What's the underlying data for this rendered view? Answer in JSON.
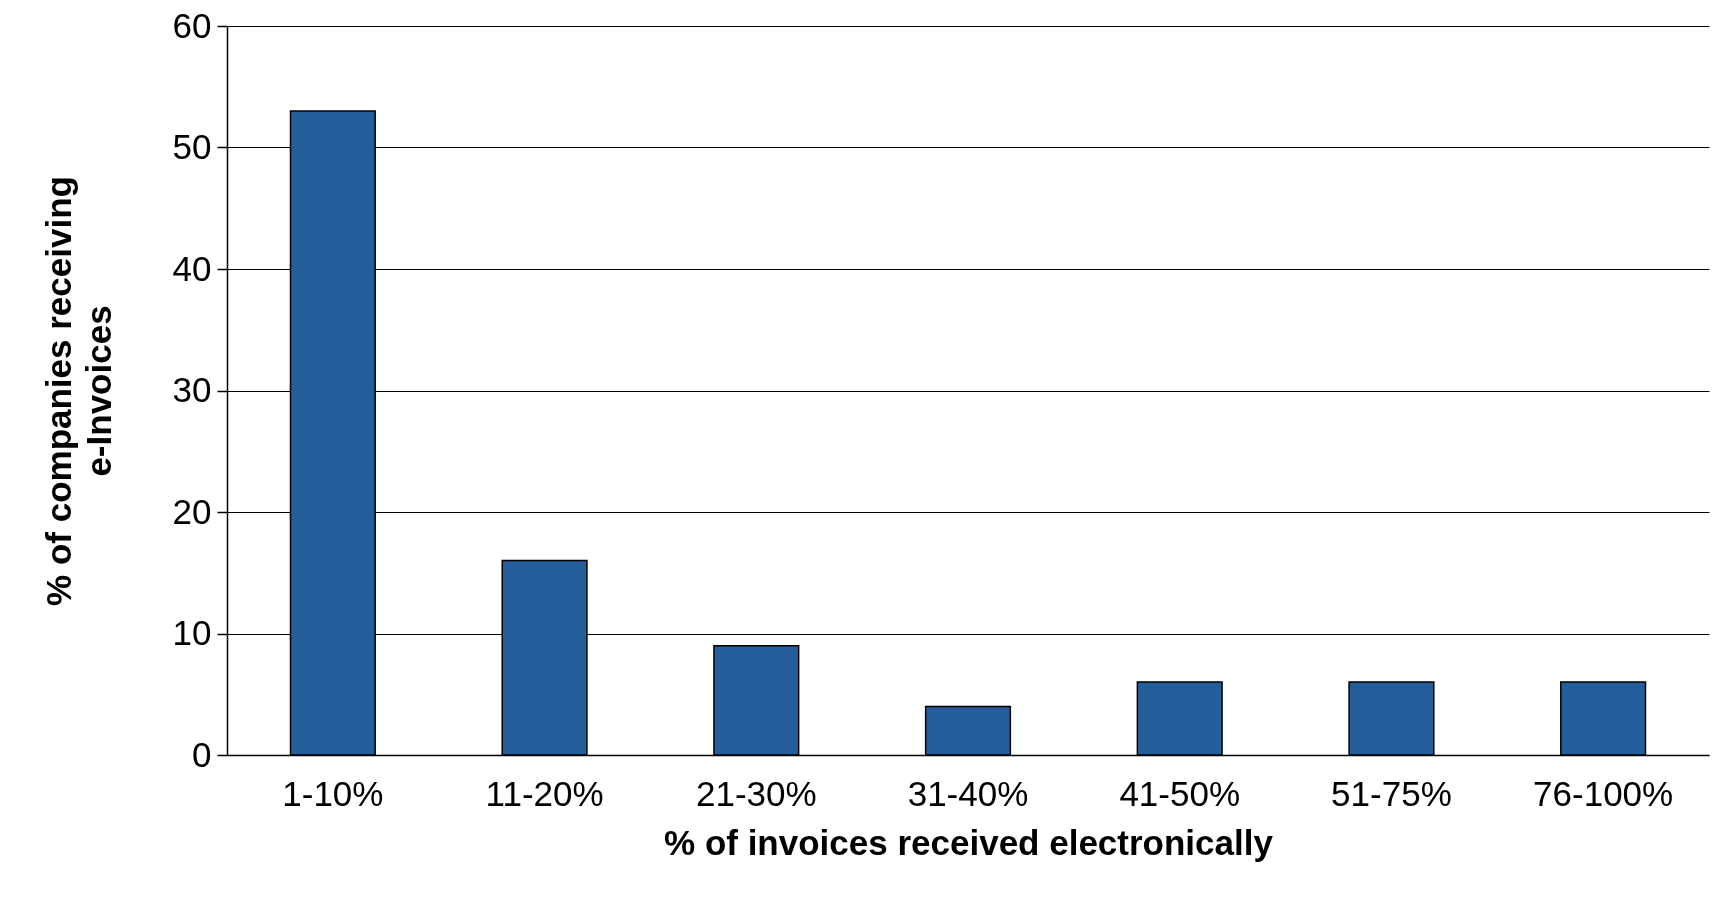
{
  "chart_data": {
    "type": "bar",
    "xlabel": "% of invoices received electronically",
    "ylabel": "% of companies receiving\ne-Invoices",
    "categories": [
      "1-10%",
      "11-20%",
      "21-30%",
      "31-40%",
      "41-50%",
      "51-75%",
      "76-100%"
    ],
    "values": [
      53,
      16,
      9,
      4,
      6,
      6,
      6
    ],
    "color": "#245f9b",
    "ylim": [
      0,
      60
    ],
    "yticks": [
      0,
      10,
      20,
      30,
      40,
      50,
      60
    ],
    "grid": "y"
  }
}
